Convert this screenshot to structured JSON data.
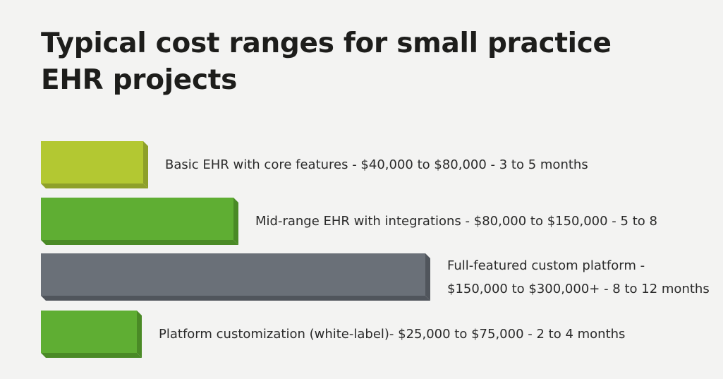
{
  "title": "Typical cost ranges for small practice EHR projects",
  "chart_data": {
    "type": "bar",
    "orientation": "horizontal",
    "title": "Typical cost ranges for small practice EHR projects",
    "xlabel": "",
    "ylabel": "",
    "grid": false,
    "categories": [
      "Basic EHR with core features - $40,000 to $80,000 - 3 to 5 months",
      "Mid-range EHR with integrations - $80,000 to $150,000 - 5 to 8",
      "Full-featured custom platform - $150,000 to $300,000+ - 8 to 12 months",
      "Platform customization (white-label)- $25,000 to $75,000 - 2 to 4 months"
    ],
    "label_lines": [
      [
        "Basic EHR with core features - $40,000 to $80,000 - 3 to 5 months"
      ],
      [
        "Mid-range EHR with integrations - $80,000 to $150,000 - 5 to 8"
      ],
      [
        "Full-featured custom platform -",
        "$150,000 to $300,000+ - 8 to 12 months"
      ],
      [
        "Platform customization (white-label)- $25,000 to $75,000 - 2 to 4 months"
      ]
    ],
    "values": [
      80000,
      150000,
      300000,
      75000
    ],
    "xlim": [
      0,
      300000
    ],
    "colors": [
      "#b3c832",
      "#5fae33",
      "#6a7078",
      "#5fae33"
    ],
    "shade_colors": [
      "#8ea02a",
      "#4a8a26",
      "#50555c",
      "#4a8a26"
    ]
  }
}
